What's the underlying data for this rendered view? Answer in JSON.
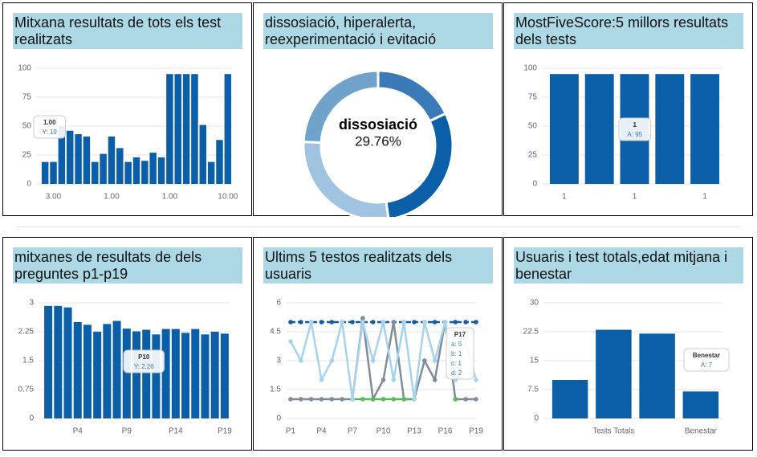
{
  "chart_data": [
    {
      "type": "bar",
      "title": "Mitxana resultats de tots els test realitzats",
      "categories": [
        null,
        "3.00",
        null,
        null,
        null,
        null,
        null,
        null,
        "1.00",
        null,
        null,
        null,
        null,
        null,
        null,
        "1.00",
        null,
        null,
        null,
        null,
        null,
        null,
        "10.00"
      ],
      "values": [
        19,
        19,
        50,
        46,
        43,
        41,
        19,
        26,
        41,
        31,
        19,
        23,
        20,
        27,
        23,
        95,
        95,
        95,
        95,
        51,
        19,
        38,
        95
      ],
      "color": "#0a5fa8",
      "ylim": [
        0,
        100
      ],
      "yticks": [
        0,
        25,
        50,
        75,
        100
      ],
      "grid": true,
      "tooltip": {
        "title": "1.00",
        "lines": [
          "Y: 19"
        ]
      }
    },
    {
      "type": "doughnut",
      "title": "dissosiació, hiperalerta, reexperimentació i evitació",
      "categories": [
        null,
        "dissosiació",
        null,
        null
      ],
      "values": [
        18,
        29.76,
        28,
        24.24
      ],
      "value_labels": [
        null,
        "29.76%",
        null,
        null
      ],
      "colors": [
        "#3a7ab8",
        "#0a5fa8",
        "#9fc3e0",
        "#6fa3cc"
      ],
      "highlight": 1
    },
    {
      "type": "bar",
      "title": "MostFiveScore:5 millors resultats dels tests",
      "categories": [
        "1",
        null,
        "1",
        null,
        "1"
      ],
      "values": [
        95,
        95,
        95,
        95,
        95
      ],
      "color": "#0a5fa8",
      "ylim": [
        0,
        100
      ],
      "yticks": [
        0,
        25,
        50,
        75,
        100
      ],
      "grid": true,
      "tooltip": {
        "title": "1",
        "lines": [
          "A: 95"
        ]
      }
    },
    {
      "type": "bar",
      "title": "mitxanes de resultats de dels preguntes p1-p19",
      "categories": [
        null,
        null,
        null,
        "P4",
        null,
        null,
        null,
        null,
        "P9",
        null,
        null,
        null,
        null,
        "P14",
        null,
        null,
        null,
        null,
        "P19"
      ],
      "values": [
        2.92,
        2.92,
        2.88,
        2.5,
        2.43,
        2.25,
        2.45,
        2.53,
        2.33,
        2.26,
        2.3,
        2.18,
        2.32,
        2.32,
        2.22,
        2.32,
        2.18,
        2.25,
        2.2
      ],
      "color": "#0a5fa8",
      "ylim": [
        0,
        3
      ],
      "yticks": [
        0,
        0.75,
        1.5,
        2.25,
        3
      ],
      "grid": true,
      "tooltip": {
        "title": "P10",
        "lines": [
          "Y: 2.26"
        ]
      }
    },
    {
      "type": "line",
      "title": "Ultims 5 testos realitzats dels usuaris",
      "categories": [
        "P1",
        null,
        null,
        "P4",
        null,
        null,
        "P7",
        null,
        null,
        "P10",
        null,
        null,
        "P13",
        null,
        null,
        "P16",
        null,
        null,
        "P19"
      ],
      "series": [
        {
          "name": "a",
          "color": "#0a5fa8",
          "values": [
            5,
            5,
            5,
            5,
            5,
            5,
            5,
            5,
            5,
            5,
            5,
            5,
            5,
            5,
            5,
            5,
            5,
            5,
            5
          ]
        },
        {
          "name": "b",
          "color": "#7f8c99",
          "values": [
            1,
            1,
            1,
            1,
            1,
            1,
            1,
            5.2,
            1,
            2,
            5,
            1,
            1,
            3,
            2,
            5,
            1,
            1,
            1
          ]
        },
        {
          "name": "c",
          "color": "#5cb85c",
          "values": [
            null,
            null,
            null,
            null,
            null,
            null,
            1,
            1,
            1,
            1,
            1,
            1,
            1,
            null,
            null,
            null,
            1,
            null,
            null
          ]
        },
        {
          "name": "d",
          "color": "#a6d3ee",
          "values": [
            4,
            3,
            5,
            2,
            3,
            5,
            1,
            5,
            3,
            5,
            2,
            5,
            1,
            5,
            3,
            5,
            2,
            4,
            2
          ]
        }
      ],
      "ylim": [
        0,
        6
      ],
      "yticks": [
        0,
        1.5,
        3,
        4.5,
        6
      ],
      "grid": true,
      "tooltip": {
        "title": "P17",
        "lines": [
          "a: 5",
          "b: 1",
          "c: 1",
          "d: 2"
        ]
      }
    },
    {
      "type": "bar",
      "title": "Usuaris i test totals,edat mitjana i benestar",
      "categories": [
        null,
        "Tests Totals",
        null,
        "Benestar"
      ],
      "values": [
        10,
        23,
        22,
        7
      ],
      "color": "#0a5fa8",
      "ylim": [
        0,
        30
      ],
      "yticks": [
        0,
        7.5,
        15,
        22.5,
        30
      ],
      "grid": true,
      "tooltip": {
        "title": "Benestar",
        "lines": [
          "A: 7"
        ]
      }
    }
  ]
}
